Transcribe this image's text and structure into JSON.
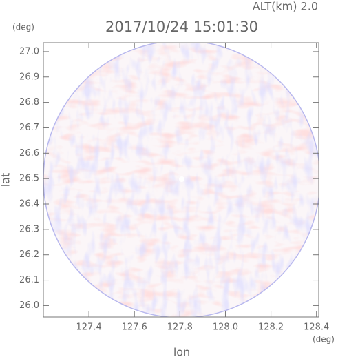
{
  "chart_data": {
    "type": "ppi",
    "title": "2017/10/24 15:01:30",
    "subtitle": "ALT(km) 2.0",
    "x_label": "lon",
    "y_label": "lat",
    "x_unit": "(deg)",
    "y_unit": "(deg)",
    "xlim": [
      127.2,
      128.41
    ],
    "ylim": [
      25.955,
      27.035
    ],
    "xticks": [
      127.4,
      127.6,
      127.8,
      {
        "value": 128.0,
        "label": "128.0"
      },
      128.2,
      128.4
    ],
    "yticks": [
      {
        "value": 26.0,
        "label": "26.0"
      },
      26.1,
      26.2,
      26.3,
      26.4,
      26.5,
      26.6,
      26.7,
      26.8,
      26.9,
      {
        "value": 27.0,
        "label": "27.0"
      }
    ]
  }
}
